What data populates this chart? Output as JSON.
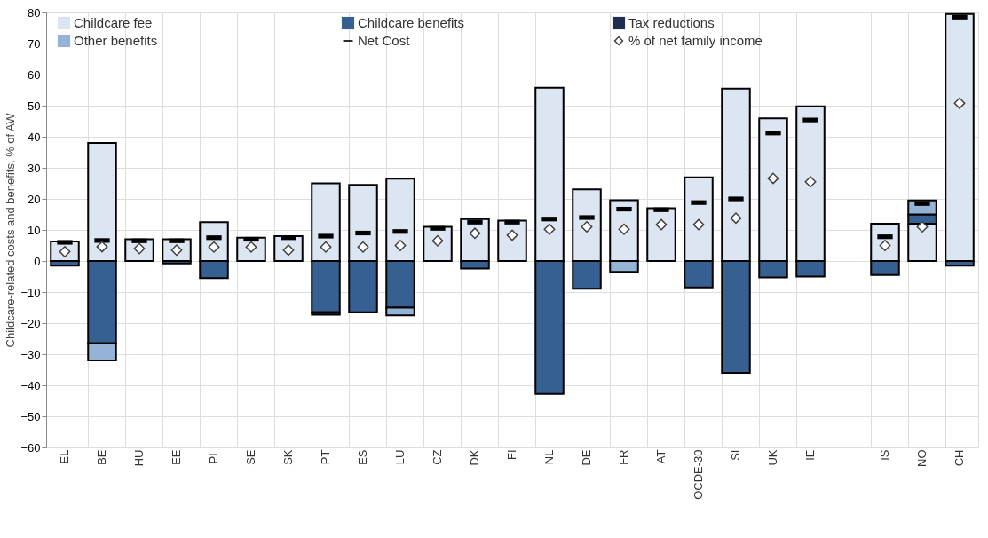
{
  "chart_data": {
    "type": "bar",
    "stacked": true,
    "ylabel": "Childcare-related costs and benefits, % of AW",
    "categories": [
      "EL",
      "BE",
      "HU",
      "EE",
      "PL",
      "SE",
      "SK",
      "PT",
      "ES",
      "LU",
      "CZ",
      "DK",
      "FI",
      "NL",
      "DE",
      "FR",
      "AT",
      "OCDE-30",
      "SI",
      "UK",
      "IE",
      null,
      "IS",
      "NO",
      "CH"
    ],
    "ylim": [
      -60,
      80
    ],
    "yticks": [
      -60,
      -50,
      -40,
      -30,
      -20,
      -10,
      0,
      10,
      20,
      30,
      40,
      50,
      60,
      70,
      80
    ],
    "grid": true,
    "legend": "top",
    "series": [
      {
        "name": "Childcare fee",
        "color": "#dce6f2",
        "values": [
          6.3,
          38,
          7,
          7,
          12.5,
          7.5,
          8,
          25,
          24.5,
          26.5,
          11,
          13.5,
          13,
          55.8,
          23.1,
          19.6,
          17,
          26.9,
          55.5,
          45.9,
          49.8,
          null,
          12,
          12,
          79.5
        ]
      },
      {
        "name": "Childcare benefits",
        "color": "#376092",
        "values": [
          -1.5,
          -26.5,
          null,
          -0.8,
          -5.5,
          null,
          null,
          -16.5,
          -16.5,
          -15,
          null,
          -2.4,
          null,
          -42.8,
          -8.9,
          null,
          null,
          -8.5,
          -36,
          -5.3,
          -5,
          null,
          -4.5,
          3,
          -1.5
        ]
      },
      {
        "name": "Tax reductions",
        "color": "#1f2d50",
        "values": [
          null,
          null,
          null,
          null,
          null,
          null,
          null,
          -0.8,
          null,
          null,
          null,
          null,
          null,
          null,
          null,
          null,
          null,
          null,
          null,
          null,
          null,
          null,
          null,
          null,
          null
        ]
      },
      {
        "name": "Other benefits",
        "color": "#95b3d7",
        "values": [
          null,
          -5.5,
          null,
          null,
          null,
          null,
          null,
          null,
          null,
          -2.5,
          null,
          null,
          null,
          null,
          null,
          -3.5,
          null,
          null,
          null,
          null,
          null,
          null,
          null,
          4.5,
          null
        ]
      },
      {
        "name": "Net Cost",
        "type": "scatter",
        "color": "#000000",
        "values": [
          6,
          6.6,
          6.5,
          6.5,
          7.5,
          7,
          7.5,
          8,
          9,
          9.5,
          10.5,
          12.5,
          12.5,
          13.5,
          14,
          16.7,
          16.5,
          18.8,
          20,
          41.2,
          45.4,
          null,
          7.8,
          18.5,
          78.5
        ]
      },
      {
        "name": "% of net family income",
        "type": "scatter",
        "marker": "diamond",
        "color": "#404040",
        "values": [
          3,
          4.6,
          4,
          3.5,
          4.5,
          4.5,
          3.5,
          4.5,
          4.5,
          5,
          6.5,
          8.9,
          8.3,
          10.2,
          11,
          10.2,
          11.7,
          11.7,
          13.8,
          26.6,
          25.5,
          null,
          5,
          11,
          50.8
        ]
      }
    ]
  }
}
